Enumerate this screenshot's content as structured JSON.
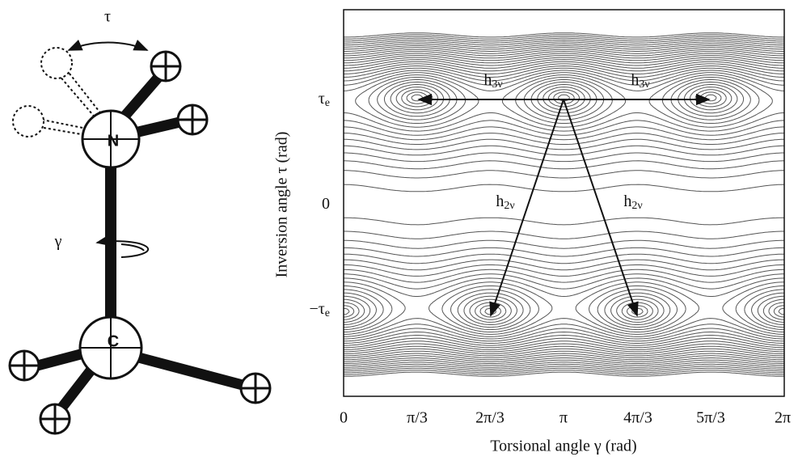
{
  "figure": {
    "molecule": {
      "tau": "τ",
      "gamma": "γ",
      "nitrogen": "N",
      "carbon": "C"
    },
    "plot": {
      "x_label": "Torsional angle γ (rad)",
      "y_label": "Inversion angle τ (rad)",
      "x_tick_labels": [
        "0",
        "π/3",
        "2π/3",
        "π",
        "4π/3",
        "5π/3",
        "2π"
      ],
      "y_tick_labels": [
        {
          "base": "τ",
          "sub": "e"
        },
        {
          "base": "0",
          "sub": ""
        },
        {
          "base": "−τ",
          "sub": "e"
        }
      ],
      "arrow_labels": [
        {
          "base": "h",
          "sub": "3ν"
        },
        {
          "base": "h",
          "sub": "3ν"
        },
        {
          "base": "h",
          "sub": "2ν"
        },
        {
          "base": "h",
          "sub": "2ν"
        }
      ]
    }
  }
}
